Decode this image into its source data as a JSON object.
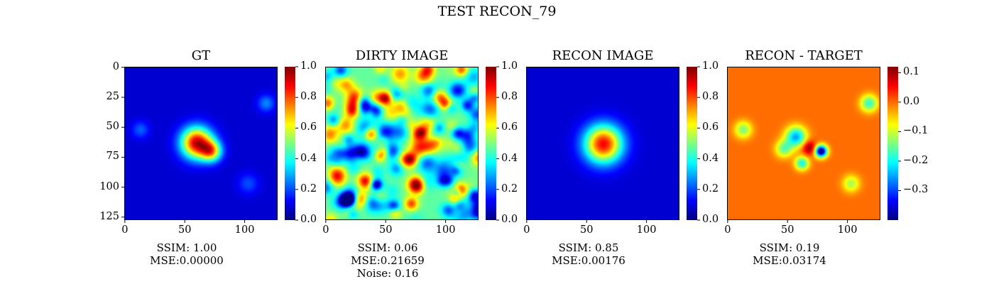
{
  "figure": {
    "title": "TEST RECON_79"
  },
  "chart_data": [
    {
      "type": "heatmap",
      "title": "GT",
      "xticks": [
        "0",
        "50",
        "100"
      ],
      "yticks": [
        "0",
        "25",
        "50",
        "75",
        "100",
        "125"
      ],
      "xlim": [
        0,
        128
      ],
      "ylim": [
        128,
        0
      ],
      "colormap": "jet",
      "colorbar": {
        "range": [
          0.0,
          1.0
        ],
        "ticks": [
          "0.0",
          "0.2",
          "0.4",
          "0.6",
          "0.8",
          "1.0"
        ]
      },
      "metrics": [
        "SSIM: 1.00",
        "MSE:0.00000"
      ],
      "features": [
        {
          "x": 60,
          "y": 63,
          "amp": 0.85,
          "sigma": 9
        },
        {
          "x": 72,
          "y": 70,
          "amp": 0.55,
          "sigma": 6
        },
        {
          "x": 118,
          "y": 30,
          "amp": 0.18,
          "sigma": 5
        },
        {
          "x": 13,
          "y": 52,
          "amp": 0.14,
          "sigma": 5
        },
        {
          "x": 103,
          "y": 97,
          "amp": 0.12,
          "sigma": 6
        }
      ]
    },
    {
      "type": "heatmap",
      "title": "DIRTY IMAGE",
      "xticks": [
        "0",
        "50",
        "100"
      ],
      "yticks": [],
      "xlim": [
        0,
        128
      ],
      "ylim": [
        128,
        0
      ],
      "colormap": "jet",
      "colorbar": {
        "range": [
          0.0,
          1.0
        ],
        "ticks": [
          "0.0",
          "0.2",
          "0.4",
          "0.6",
          "0.8",
          "1.0"
        ]
      },
      "metrics": [
        "SSIM: 0.06",
        "MSE:0.21659",
        "Noise: 0.16"
      ],
      "features": []
    },
    {
      "type": "heatmap",
      "title": "RECON IMAGE",
      "xticks": [
        "0",
        "50",
        "100"
      ],
      "yticks": [],
      "xlim": [
        0,
        128
      ],
      "ylim": [
        128,
        0
      ],
      "colormap": "jet",
      "colorbar": {
        "range": [
          0.0,
          1.0
        ],
        "ticks": [
          "0.0",
          "0.2",
          "0.4",
          "0.6",
          "0.8",
          "1.0"
        ]
      },
      "metrics": [
        "SSIM: 0.85",
        "MSE:0.00176"
      ],
      "features": [
        {
          "x": 64,
          "y": 64,
          "amp": 0.8,
          "sigma": 11
        }
      ]
    },
    {
      "type": "heatmap",
      "title": "RECON - TARGET",
      "xticks": [
        "0",
        "50",
        "100"
      ],
      "yticks": [],
      "xlim": [
        0,
        128
      ],
      "ylim": [
        128,
        0
      ],
      "colormap": "jet",
      "colorbar": {
        "range": [
          -0.4,
          0.12
        ],
        "ticks": [
          "0.1",
          "0.0",
          "−0.1",
          "−0.2",
          "−0.3"
        ],
        "tick_values": [
          0.1,
          0.0,
          -0.1,
          -0.2,
          -0.3
        ]
      },
      "metrics": [
        "SSIM: 0.19",
        "MSE:0.03174"
      ],
      "features": [
        {
          "x": 118,
          "y": 30,
          "amp": -0.18,
          "sigma": 5
        },
        {
          "x": 13,
          "y": 52,
          "amp": -0.14,
          "sigma": 5
        },
        {
          "x": 103,
          "y": 97,
          "amp": -0.12,
          "sigma": 5
        },
        {
          "x": 57,
          "y": 58,
          "amp": -0.25,
          "sigma": 6
        },
        {
          "x": 47,
          "y": 68,
          "amp": -0.15,
          "sigma": 5
        },
        {
          "x": 68,
          "y": 67,
          "amp": 0.12,
          "sigma": 4
        },
        {
          "x": 78,
          "y": 70,
          "amp": -0.42,
          "sigma": 3.5
        },
        {
          "x": 62,
          "y": 80,
          "amp": -0.2,
          "sigma": 4
        }
      ]
    }
  ]
}
